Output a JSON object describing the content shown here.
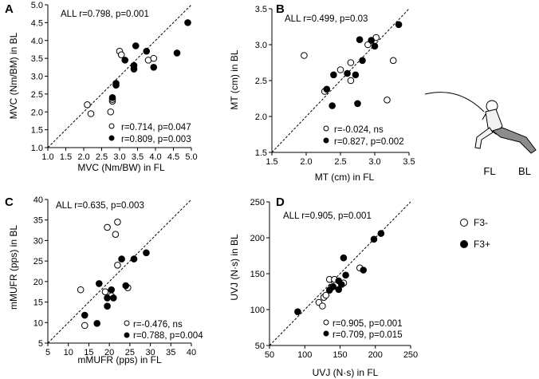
{
  "chart_data": [
    {
      "panel": "A",
      "type": "scatter",
      "xlabel": "MVC (Nm/BW) in FL",
      "ylabel": "MVC (Nm/BM) in BL",
      "xlim": [
        1.0,
        5.0
      ],
      "ylim": [
        1.0,
        5.0
      ],
      "xticks": [
        "1.0",
        "1.5",
        "2.0",
        "2.5",
        "3.0",
        "3.5",
        "4.0",
        "4.5",
        "5.0"
      ],
      "yticks": [
        "1.0",
        "1.5",
        "2.0",
        "2.5",
        "3.0",
        "3.5",
        "4.0",
        "4.5",
        "5.0"
      ],
      "identity_line": true,
      "all_stat": "ALL r=0.798, p=0.001",
      "series": [
        {
          "name": "F3-",
          "stat": "r=0.714, p=0.047",
          "points": [
            [
              2.1,
              2.2
            ],
            [
              2.2,
              1.95
            ],
            [
              2.75,
              2.0
            ],
            [
              2.8,
              2.3
            ],
            [
              2.8,
              2.35
            ],
            [
              3.0,
              3.7
            ],
            [
              3.05,
              3.6
            ],
            [
              3.8,
              3.45
            ],
            [
              3.95,
              3.5
            ]
          ]
        },
        {
          "name": "F3+",
          "stat": "r=0.809, p=0.003",
          "points": [
            [
              2.8,
              2.4
            ],
            [
              2.9,
              2.8
            ],
            [
              2.9,
              2.75
            ],
            [
              3.15,
              3.45
            ],
            [
              3.4,
              3.3
            ],
            [
              3.45,
              3.85
            ],
            [
              3.4,
              3.2
            ],
            [
              3.75,
              3.7
            ],
            [
              3.95,
              3.25
            ],
            [
              4.6,
              3.65
            ],
            [
              4.9,
              4.5
            ]
          ]
        }
      ]
    },
    {
      "panel": "B",
      "type": "scatter",
      "xlabel": "MT (cm) in FL",
      "ylabel": "MT (cm) in BL",
      "xlim": [
        1.5,
        3.5
      ],
      "ylim": [
        1.5,
        3.5
      ],
      "xticks": [
        "1.5",
        "2.0",
        "2.5",
        "3.0",
        "3.5"
      ],
      "yticks": [
        "1.5",
        "2.0",
        "2.5",
        "3.0",
        "3.5"
      ],
      "identity_line": true,
      "all_stat": "ALL r=0.499, p=0.03",
      "series": [
        {
          "name": "F3-",
          "stat": "r=-0.024, ns",
          "points": [
            [
              1.97,
              2.85
            ],
            [
              2.27,
              2.35
            ],
            [
              2.5,
              2.65
            ],
            [
              2.65,
              2.75
            ],
            [
              2.65,
              2.5
            ],
            [
              2.9,
              3.0
            ],
            [
              3.02,
              3.1
            ],
            [
              3.18,
              2.23
            ],
            [
              3.27,
              2.78
            ]
          ]
        },
        {
          "name": "F3+",
          "stat": "r=0.827, p=0.002",
          "points": [
            [
              2.3,
              2.38
            ],
            [
              2.38,
              2.15
            ],
            [
              2.4,
              2.58
            ],
            [
              2.6,
              2.6
            ],
            [
              2.72,
              2.58
            ],
            [
              2.75,
              2.18
            ],
            [
              2.78,
              3.07
            ],
            [
              2.82,
              2.78
            ],
            [
              2.95,
              3.06
            ],
            [
              3.0,
              2.98
            ],
            [
              3.35,
              3.28
            ]
          ]
        }
      ]
    },
    {
      "panel": "C",
      "type": "scatter",
      "xlabel": "mMUFR (pps) in FL",
      "ylabel": "mMUFR (pps) in BL",
      "xlim": [
        5,
        40
      ],
      "ylim": [
        5,
        40
      ],
      "xticks": [
        "5",
        "10",
        "15",
        "20",
        "25",
        "30",
        "35",
        "40"
      ],
      "yticks": [
        "5",
        "10",
        "15",
        "20",
        "25",
        "30",
        "35",
        "40"
      ],
      "identity_line": true,
      "all_stat": "ALL r=0.635, p=0.003",
      "series": [
        {
          "name": "F3-",
          "stat": "r=-0.476, ns",
          "points": [
            [
              13,
              18
            ],
            [
              14,
              9.3
            ],
            [
              19,
              17.5
            ],
            [
              19.5,
              33.2
            ],
            [
              20.5,
              16.5
            ],
            [
              21.5,
              31.5
            ],
            [
              22,
              34.5
            ],
            [
              22,
              24
            ],
            [
              24.5,
              18.5
            ]
          ]
        },
        {
          "name": "F3+",
          "stat": "r=0.788, p=0.004",
          "points": [
            [
              14,
              11.8
            ],
            [
              17,
              9.8
            ],
            [
              17.5,
              19.5
            ],
            [
              19.5,
              14
            ],
            [
              19.5,
              16
            ],
            [
              20.5,
              18
            ],
            [
              21,
              16
            ],
            [
              23,
              25.5
            ],
            [
              24,
              19
            ],
            [
              26,
              25.5
            ],
            [
              29,
              27
            ]
          ]
        }
      ]
    },
    {
      "panel": "D",
      "type": "scatter",
      "xlabel": "UVJ (N·s) in FL",
      "ylabel": "UVJ (N·s) in BL",
      "xlim": [
        50,
        250
      ],
      "ylim": [
        50,
        250
      ],
      "xticks": [
        "50",
        "100",
        "150",
        "200",
        "250"
      ],
      "yticks": [
        "50",
        "100",
        "150",
        "200",
        "250"
      ],
      "identity_line": true,
      "all_stat": "ALL r=0.905, p=0.001",
      "series": [
        {
          "name": "F3-",
          "stat": "r=0.905, p=0.001",
          "points": [
            [
              120,
              110
            ],
            [
              125,
              105
            ],
            [
              127,
              117
            ],
            [
              130,
              120
            ],
            [
              135,
              142
            ],
            [
              138,
              131
            ],
            [
              142,
              142
            ],
            [
              155,
              137
            ],
            [
              178,
              158
            ]
          ]
        },
        {
          "name": "F3+",
          "stat": "r=0.709, p=0.015",
          "points": [
            [
              90,
              97
            ],
            [
              135,
              127
            ],
            [
              140,
              132
            ],
            [
              148,
              140
            ],
            [
              148,
              128
            ],
            [
              152,
              135
            ],
            [
              155,
              172
            ],
            [
              158,
              148
            ],
            [
              183,
              155
            ],
            [
              198,
              198
            ],
            [
              208,
              206
            ]
          ]
        }
      ]
    }
  ],
  "legend": {
    "items": [
      {
        "label": "F3-",
        "marker": "open-circle"
      },
      {
        "label": "F3+",
        "marker": "filled-circle"
      }
    ]
  },
  "figure": {
    "fl_label": "FL",
    "bl_label": "BL"
  }
}
